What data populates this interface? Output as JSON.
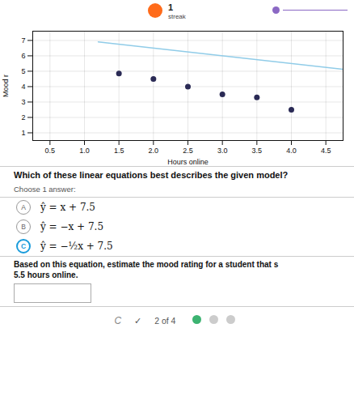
{
  "chart_data": {
    "type": "scatter",
    "xlabel": "Hours online",
    "ylabel": "Mood r",
    "xlim": [
      0.25,
      4.75
    ],
    "ylim": [
      0.5,
      7.6
    ],
    "xticks": [
      {
        "value": 0.5,
        "label": "0.5"
      },
      {
        "value": 1,
        "label": "1.0"
      },
      {
        "value": 1.5,
        "label": "1.5"
      },
      {
        "value": 2,
        "label": "2.0"
      },
      {
        "value": 2.5,
        "label": "2.5"
      },
      {
        "value": 3,
        "label": "3.0"
      },
      {
        "value": 3.5,
        "label": "3.5"
      },
      {
        "value": 4,
        "label": "4.0"
      },
      {
        "value": 4.5,
        "label": "4.5"
      }
    ],
    "yticks": [
      1,
      2,
      3,
      4,
      5,
      6,
      7
    ],
    "grid": true,
    "series": [
      {
        "type": "scatter",
        "color": "#2a2a55",
        "x": [
          1.5,
          2.0,
          2.5,
          3.0,
          3.5,
          4.0
        ],
        "values": [
          4.85,
          4.5,
          4.0,
          3.5,
          3.3,
          2.5
        ]
      },
      {
        "type": "line",
        "color": "#90cce8",
        "x": [
          1.2,
          4.75
        ],
        "values": [
          6.9,
          5.125
        ]
      }
    ],
    "annotations": [
      "1",
      "streak",
      "Which of these linear equations best describes the given model?",
      "Choose 1 answer:",
      "A",
      "ŷ = x + 7.5",
      "B",
      "ŷ = −x + 7.5",
      "C",
      "ŷ = −½x + 7.5",
      "Based on this equation, estimate the mood rating for a student that s",
      "5.5 hours online.",
      "C",
      "✓",
      "2 of 4"
    ]
  }
}
